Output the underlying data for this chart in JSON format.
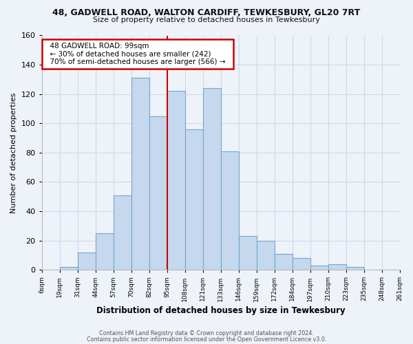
{
  "title_line1": "48, GADWELL ROAD, WALTON CARDIFF, TEWKESBURY, GL20 7RT",
  "title_line2": "Size of property relative to detached houses in Tewkesbury",
  "xlabel": "Distribution of detached houses by size in Tewkesbury",
  "ylabel": "Number of detached properties",
  "footer_line1": "Contains HM Land Registry data © Crown copyright and database right 2024.",
  "footer_line2": "Contains public sector information licensed under the Open Government Licence v3.0.",
  "bin_labels": [
    "6sqm",
    "19sqm",
    "31sqm",
    "44sqm",
    "57sqm",
    "70sqm",
    "82sqm",
    "95sqm",
    "108sqm",
    "121sqm",
    "133sqm",
    "146sqm",
    "159sqm",
    "172sqm",
    "184sqm",
    "197sqm",
    "210sqm",
    "223sqm",
    "235sqm",
    "248sqm",
    "261sqm"
  ],
  "bar_heights": [
    0,
    2,
    12,
    25,
    51,
    131,
    105,
    122,
    96,
    124,
    81,
    23,
    20,
    11,
    8,
    3,
    4,
    2,
    0,
    0
  ],
  "bar_color": "#c5d8ee",
  "bar_edge_color": "#6fa8d0",
  "vline_color": "#cc0000",
  "annotation_title": "48 GADWELL ROAD: 99sqm",
  "annotation_line2": "← 30% of detached houses are smaller (242)",
  "annotation_line3": "70% of semi-detached houses are larger (566) →",
  "annotation_box_color": "#ffffff",
  "annotation_box_edge": "#cc0000",
  "ylim": [
    0,
    160
  ],
  "yticks": [
    0,
    20,
    40,
    60,
    80,
    100,
    120,
    140,
    160
  ],
  "background_color": "#eef2f9",
  "grid_color": "#d0d8e8"
}
